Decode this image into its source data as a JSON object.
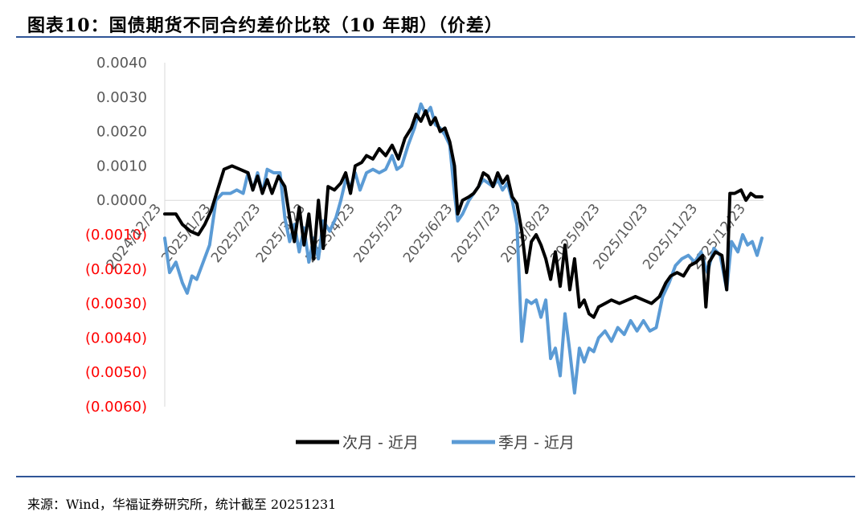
{
  "header": {
    "title": "图表10：国债期货不同合约差价比较（10 年期）（价差）"
  },
  "footer": {
    "source": "来源：Wind，华福证券研究所，统计截至 20251231"
  },
  "colors": {
    "accent_rule": "#2f5597",
    "negative_tick": "#ff0000",
    "positive_tick": "#595959",
    "series_next": "#000000",
    "series_season": "#5b9bd5"
  },
  "chart_data": {
    "type": "line",
    "title": "",
    "xlabel": "",
    "ylabel": "",
    "ylim": [
      -0.006,
      0.004
    ],
    "yticks": [
      0.004,
      0.003,
      0.002,
      0.001,
      0.0,
      -0.001,
      -0.002,
      -0.003,
      -0.004,
      -0.005,
      -0.006
    ],
    "ytick_labels": [
      "0.0040",
      "0.0030",
      "0.0020",
      "0.0010",
      "0.0000",
      "(0.0010)",
      "(0.0020)",
      "(0.0030)",
      "(0.0040)",
      "(0.0050)",
      "(0.0060)"
    ],
    "x_start": "2024-12-23",
    "x_end": "2025-12-31",
    "xtick_dates": [
      "2024-12-23",
      "2025-01-23",
      "2025-02-23",
      "2025-03-23",
      "2025-04-23",
      "2025-05-23",
      "2025-06-23",
      "2025-07-23",
      "2025-08-23",
      "2025-09-23",
      "2025-10-23",
      "2025-11-23",
      "2025-12-23"
    ],
    "xtick_labels": [
      "2024/12/23",
      "2025/1/23",
      "2025/2/23",
      "2025/3/23",
      "2025/4/23",
      "2025/5/23",
      "2025/6/23",
      "2025/7/23",
      "2025/8/23",
      "2025/9/23",
      "2025/10/23",
      "2025/11/23",
      "2025/12/23"
    ],
    "legend_position": "bottom",
    "grid": false,
    "series": [
      {
        "name": "次月 - 近月",
        "color": "#000000",
        "points": [
          [
            "2024-12-23",
            -0.0004
          ],
          [
            "2024-12-30",
            -0.0004
          ],
          [
            "2025-01-03",
            -0.0007
          ],
          [
            "2025-01-08",
            -0.0009
          ],
          [
            "2025-01-13",
            -0.001
          ],
          [
            "2025-01-17",
            -0.0007
          ],
          [
            "2025-01-21",
            -0.0003
          ],
          [
            "2025-01-25",
            0.0003
          ],
          [
            "2025-01-29",
            0.0009
          ],
          [
            "2025-02-03",
            0.001
          ],
          [
            "2025-02-08",
            0.0009
          ],
          [
            "2025-02-13",
            0.0008
          ],
          [
            "2025-02-16",
            0.0003
          ],
          [
            "2025-02-19",
            0.0007
          ],
          [
            "2025-02-22",
            0.0002
          ],
          [
            "2025-02-25",
            0.0006
          ],
          [
            "2025-02-28",
            0.0002
          ],
          [
            "2025-03-04",
            0.0007
          ],
          [
            "2025-03-08",
            0.0004
          ],
          [
            "2025-03-11",
            -0.0005
          ],
          [
            "2025-03-14",
            -0.0012
          ],
          [
            "2025-03-17",
            -0.0002
          ],
          [
            "2025-03-20",
            -0.0013
          ],
          [
            "2025-03-23",
            -0.0004
          ],
          [
            "2025-03-26",
            -0.0017
          ],
          [
            "2025-03-29",
            0.0
          ],
          [
            "2025-04-01",
            -0.0014
          ],
          [
            "2025-04-04",
            0.0004
          ],
          [
            "2025-04-08",
            0.0003
          ],
          [
            "2025-04-12",
            0.0005
          ],
          [
            "2025-04-15",
            0.0008
          ],
          [
            "2025-04-18",
            0.0002
          ],
          [
            "2025-04-21",
            0.001
          ],
          [
            "2025-04-25",
            0.0011
          ],
          [
            "2025-04-28",
            0.0013
          ],
          [
            "2025-05-02",
            0.0012
          ],
          [
            "2025-05-06",
            0.0015
          ],
          [
            "2025-05-10",
            0.0013
          ],
          [
            "2025-05-14",
            0.0016
          ],
          [
            "2025-05-18",
            0.0012
          ],
          [
            "2025-05-22",
            0.0018
          ],
          [
            "2025-05-26",
            0.0021
          ],
          [
            "2025-05-29",
            0.0025
          ],
          [
            "2025-06-01",
            0.0023
          ],
          [
            "2025-06-04",
            0.0026
          ],
          [
            "2025-06-07",
            0.0022
          ],
          [
            "2025-06-10",
            0.0024
          ],
          [
            "2025-06-13",
            0.002
          ],
          [
            "2025-06-16",
            0.0021
          ],
          [
            "2025-06-19",
            0.0017
          ],
          [
            "2025-06-22",
            0.001
          ],
          [
            "2025-06-24",
            -0.0004
          ],
          [
            "2025-06-27",
            0.0
          ],
          [
            "2025-07-01",
            0.0001
          ],
          [
            "2025-07-04",
            0.0002
          ],
          [
            "2025-07-07",
            0.0004
          ],
          [
            "2025-07-10",
            0.0008
          ],
          [
            "2025-07-13",
            0.0007
          ],
          [
            "2025-07-16",
            0.0004
          ],
          [
            "2025-07-19",
            0.0008
          ],
          [
            "2025-07-22",
            0.0005
          ],
          [
            "2025-07-25",
            0.0007
          ],
          [
            "2025-07-28",
            0.0001
          ],
          [
            "2025-07-31",
            -0.0001
          ],
          [
            "2025-08-03",
            -0.0009
          ],
          [
            "2025-08-06",
            -0.0021
          ],
          [
            "2025-08-09",
            -0.0012
          ],
          [
            "2025-08-12",
            -0.001
          ],
          [
            "2025-08-15",
            -0.0013
          ],
          [
            "2025-08-18",
            -0.0017
          ],
          [
            "2025-08-21",
            -0.0023
          ],
          [
            "2025-08-24",
            -0.0015
          ],
          [
            "2025-08-27",
            -0.0025
          ],
          [
            "2025-08-30",
            -0.0013
          ],
          [
            "2025-09-02",
            -0.0026
          ],
          [
            "2025-09-05",
            -0.0017
          ],
          [
            "2025-09-08",
            -0.0031
          ],
          [
            "2025-09-11",
            -0.0029
          ],
          [
            "2025-09-14",
            -0.0033
          ],
          [
            "2025-09-17",
            -0.0034
          ],
          [
            "2025-09-20",
            -0.0031
          ],
          [
            "2025-09-24",
            -0.003
          ],
          [
            "2025-09-28",
            -0.0029
          ],
          [
            "2025-10-03",
            -0.003
          ],
          [
            "2025-10-08",
            -0.0029
          ],
          [
            "2025-10-13",
            -0.0028
          ],
          [
            "2025-10-18",
            -0.0029
          ],
          [
            "2025-10-23",
            -0.003
          ],
          [
            "2025-10-28",
            -0.0028
          ],
          [
            "2025-11-01",
            -0.0024
          ],
          [
            "2025-11-04",
            -0.0022
          ],
          [
            "2025-11-08",
            -0.0021
          ],
          [
            "2025-11-12",
            -0.0022
          ],
          [
            "2025-11-16",
            -0.0019
          ],
          [
            "2025-11-20",
            -0.0018
          ],
          [
            "2025-11-24",
            -0.0016
          ],
          [
            "2025-11-26",
            -0.0031
          ],
          [
            "2025-11-28",
            -0.0018
          ],
          [
            "2025-12-02",
            -0.0015
          ],
          [
            "2025-12-06",
            -0.0016
          ],
          [
            "2025-12-09",
            -0.0026
          ],
          [
            "2025-12-11",
            0.0002
          ],
          [
            "2025-12-14",
            0.0002
          ],
          [
            "2025-12-18",
            0.0003
          ],
          [
            "2025-12-21",
            0.0
          ],
          [
            "2025-12-24",
            0.0002
          ],
          [
            "2025-12-27",
            0.0001
          ],
          [
            "2025-12-31",
            0.0001
          ]
        ]
      },
      {
        "name": "季月 - 近月",
        "color": "#5b9bd5",
        "points": [
          [
            "2024-12-23",
            -0.0011
          ],
          [
            "2024-12-26",
            -0.0021
          ],
          [
            "2024-12-30",
            -0.0018
          ],
          [
            "2025-01-03",
            -0.0024
          ],
          [
            "2025-01-06",
            -0.0027
          ],
          [
            "2025-01-09",
            -0.0022
          ],
          [
            "2025-01-12",
            -0.0023
          ],
          [
            "2025-01-16",
            -0.0018
          ],
          [
            "2025-01-20",
            -0.0013
          ],
          [
            "2025-01-24",
            0.0
          ],
          [
            "2025-01-28",
            0.0002
          ],
          [
            "2025-02-02",
            0.0002
          ],
          [
            "2025-02-06",
            0.0003
          ],
          [
            "2025-02-10",
            0.0002
          ],
          [
            "2025-02-13",
            0.0008
          ],
          [
            "2025-02-16",
            0.0003
          ],
          [
            "2025-02-19",
            0.0008
          ],
          [
            "2025-02-22",
            0.0002
          ],
          [
            "2025-02-25",
            0.0009
          ],
          [
            "2025-03-01",
            0.0008
          ],
          [
            "2025-03-05",
            0.0008
          ],
          [
            "2025-03-08",
            -0.0005
          ],
          [
            "2025-03-11",
            -0.0012
          ],
          [
            "2025-03-14",
            -0.0007
          ],
          [
            "2025-03-17",
            -0.0015
          ],
          [
            "2025-03-20",
            -0.0008
          ],
          [
            "2025-03-23",
            -0.0018
          ],
          [
            "2025-03-26",
            -0.0011
          ],
          [
            "2025-03-29",
            -0.0017
          ],
          [
            "2025-04-01",
            -0.0006
          ],
          [
            "2025-04-05",
            -0.0009
          ],
          [
            "2025-04-09",
            -0.0005
          ],
          [
            "2025-04-12",
            0.0
          ],
          [
            "2025-04-15",
            0.0006
          ],
          [
            "2025-04-18",
            0.0004
          ],
          [
            "2025-04-21",
            0.0008
          ],
          [
            "2025-04-24",
            0.0003
          ],
          [
            "2025-04-28",
            0.0008
          ],
          [
            "2025-05-02",
            0.0009
          ],
          [
            "2025-05-06",
            0.0008
          ],
          [
            "2025-05-10",
            0.0009
          ],
          [
            "2025-05-14",
            0.0013
          ],
          [
            "2025-05-17",
            0.0009
          ],
          [
            "2025-05-20",
            0.001
          ],
          [
            "2025-05-24",
            0.0016
          ],
          [
            "2025-05-28",
            0.0021
          ],
          [
            "2025-06-01",
            0.0028
          ],
          [
            "2025-06-04",
            0.0025
          ],
          [
            "2025-06-07",
            0.0027
          ],
          [
            "2025-06-10",
            0.0022
          ],
          [
            "2025-06-13",
            0.0021
          ],
          [
            "2025-06-16",
            0.0019
          ],
          [
            "2025-06-19",
            0.0016
          ],
          [
            "2025-06-22",
            0.0002
          ],
          [
            "2025-06-24",
            -0.0006
          ],
          [
            "2025-06-27",
            -0.0004
          ],
          [
            "2025-07-01",
            0.0
          ],
          [
            "2025-07-04",
            0.0002
          ],
          [
            "2025-07-07",
            0.0004
          ],
          [
            "2025-07-10",
            0.0006
          ],
          [
            "2025-07-13",
            0.0005
          ],
          [
            "2025-07-16",
            0.0004
          ],
          [
            "2025-07-19",
            0.0006
          ],
          [
            "2025-07-22",
            0.0003
          ],
          [
            "2025-07-25",
            0.0005
          ],
          [
            "2025-07-28",
            0.0
          ],
          [
            "2025-07-31",
            -0.0007
          ],
          [
            "2025-08-03",
            -0.0041
          ],
          [
            "2025-08-06",
            -0.0029
          ],
          [
            "2025-08-09",
            -0.003
          ],
          [
            "2025-08-12",
            -0.0029
          ],
          [
            "2025-08-15",
            -0.0034
          ],
          [
            "2025-08-18",
            -0.0029
          ],
          [
            "2025-08-21",
            -0.0046
          ],
          [
            "2025-08-24",
            -0.0043
          ],
          [
            "2025-08-27",
            -0.0051
          ],
          [
            "2025-08-30",
            -0.0033
          ],
          [
            "2025-09-02",
            -0.0044
          ],
          [
            "2025-09-05",
            -0.0056
          ],
          [
            "2025-09-08",
            -0.0043
          ],
          [
            "2025-09-11",
            -0.0047
          ],
          [
            "2025-09-14",
            -0.0043
          ],
          [
            "2025-09-17",
            -0.0044
          ],
          [
            "2025-09-20",
            -0.004
          ],
          [
            "2025-09-24",
            -0.0038
          ],
          [
            "2025-09-28",
            -0.0041
          ],
          [
            "2025-10-02",
            -0.0037
          ],
          [
            "2025-10-06",
            -0.0039
          ],
          [
            "2025-10-10",
            -0.0035
          ],
          [
            "2025-10-14",
            -0.0038
          ],
          [
            "2025-10-18",
            -0.0035
          ],
          [
            "2025-10-22",
            -0.0038
          ],
          [
            "2025-10-26",
            -0.0037
          ],
          [
            "2025-10-30",
            -0.0028
          ],
          [
            "2025-11-03",
            -0.0024
          ],
          [
            "2025-11-07",
            -0.0019
          ],
          [
            "2025-11-11",
            -0.0017
          ],
          [
            "2025-11-15",
            -0.0016
          ],
          [
            "2025-11-19",
            -0.0018
          ],
          [
            "2025-11-23",
            -0.0015
          ],
          [
            "2025-11-27",
            -0.0021
          ],
          [
            "2025-12-01",
            -0.0014
          ],
          [
            "2025-12-05",
            -0.0016
          ],
          [
            "2025-12-09",
            -0.0026
          ],
          [
            "2025-12-12",
            -0.0012
          ],
          [
            "2025-12-16",
            -0.0015
          ],
          [
            "2025-12-19",
            -0.001
          ],
          [
            "2025-12-22",
            -0.0013
          ],
          [
            "2025-12-25",
            -0.0012
          ],
          [
            "2025-12-28",
            -0.0016
          ],
          [
            "2025-12-31",
            -0.0011
          ]
        ]
      }
    ]
  }
}
